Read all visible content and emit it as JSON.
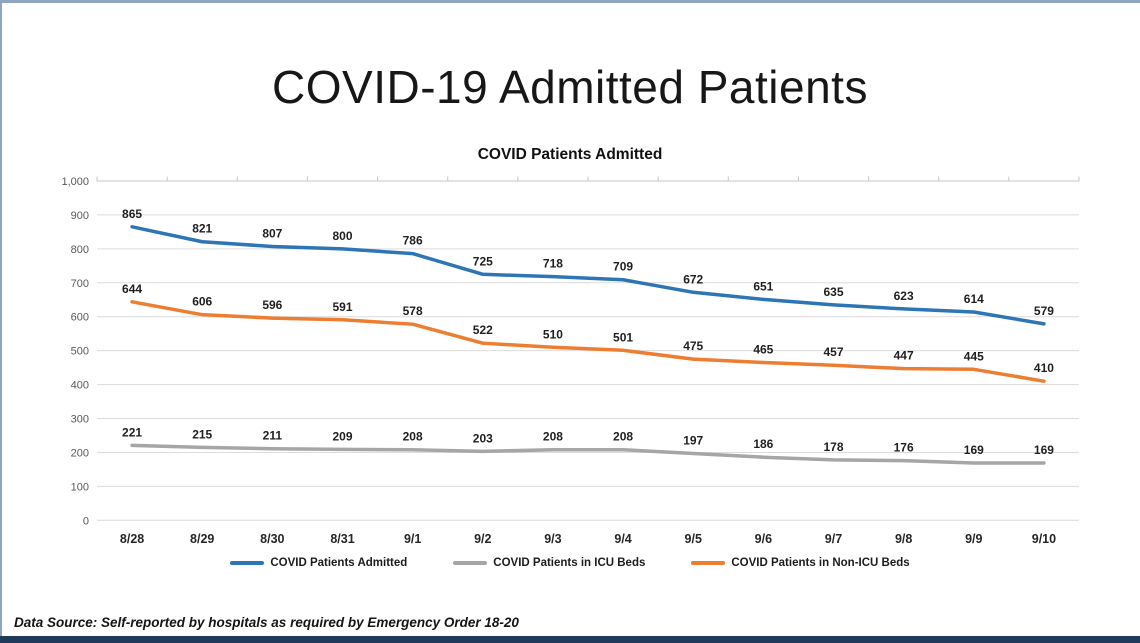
{
  "page": {
    "title": "COVID-19 Admitted Patients",
    "data_source_note": "Data Source: Self-reported by hospitals as required by Emergency Order 18-20"
  },
  "colors": {
    "series_admitted": "#2E75B6",
    "series_icu": "#A6A6A6",
    "series_non_icu": "#ED7D31",
    "page_border": "#8FA4BE",
    "bottom_bar": "#1F3A5A",
    "gridline": "#DCDCDC",
    "axis_line": "#C7C7C7"
  },
  "chart_data": {
    "type": "line",
    "title": "COVID Patients Admitted",
    "categories": [
      "8/28",
      "8/29",
      "8/30",
      "8/31",
      "9/1",
      "9/2",
      "9/3",
      "9/4",
      "9/5",
      "9/6",
      "9/7",
      "9/8",
      "9/9",
      "9/10"
    ],
    "series": [
      {
        "name": "COVID Patients Admitted",
        "color": "#2E75B6",
        "values": [
          865,
          821,
          807,
          800,
          786,
          725,
          718,
          709,
          672,
          651,
          635,
          623,
          614,
          579
        ]
      },
      {
        "name": "COVID Patients in ICU Beds",
        "color": "#A6A6A6",
        "values": [
          221,
          215,
          211,
          209,
          208,
          203,
          208,
          208,
          197,
          186,
          178,
          176,
          169,
          169
        ]
      },
      {
        "name": "COVID Patients in Non-ICU Beds",
        "color": "#ED7D31",
        "values": [
          644,
          606,
          596,
          591,
          578,
          522,
          510,
          501,
          475,
          465,
          457,
          447,
          445,
          410
        ]
      }
    ],
    "ylim": [
      0,
      1000
    ],
    "y_tick_interval": 100,
    "y_tick_labels": [
      "0",
      "100",
      "200",
      "300",
      "400",
      "500",
      "600",
      "700",
      "800",
      "900",
      "1,000"
    ],
    "grid": true,
    "data_labels": true,
    "legend_position": "bottom"
  }
}
